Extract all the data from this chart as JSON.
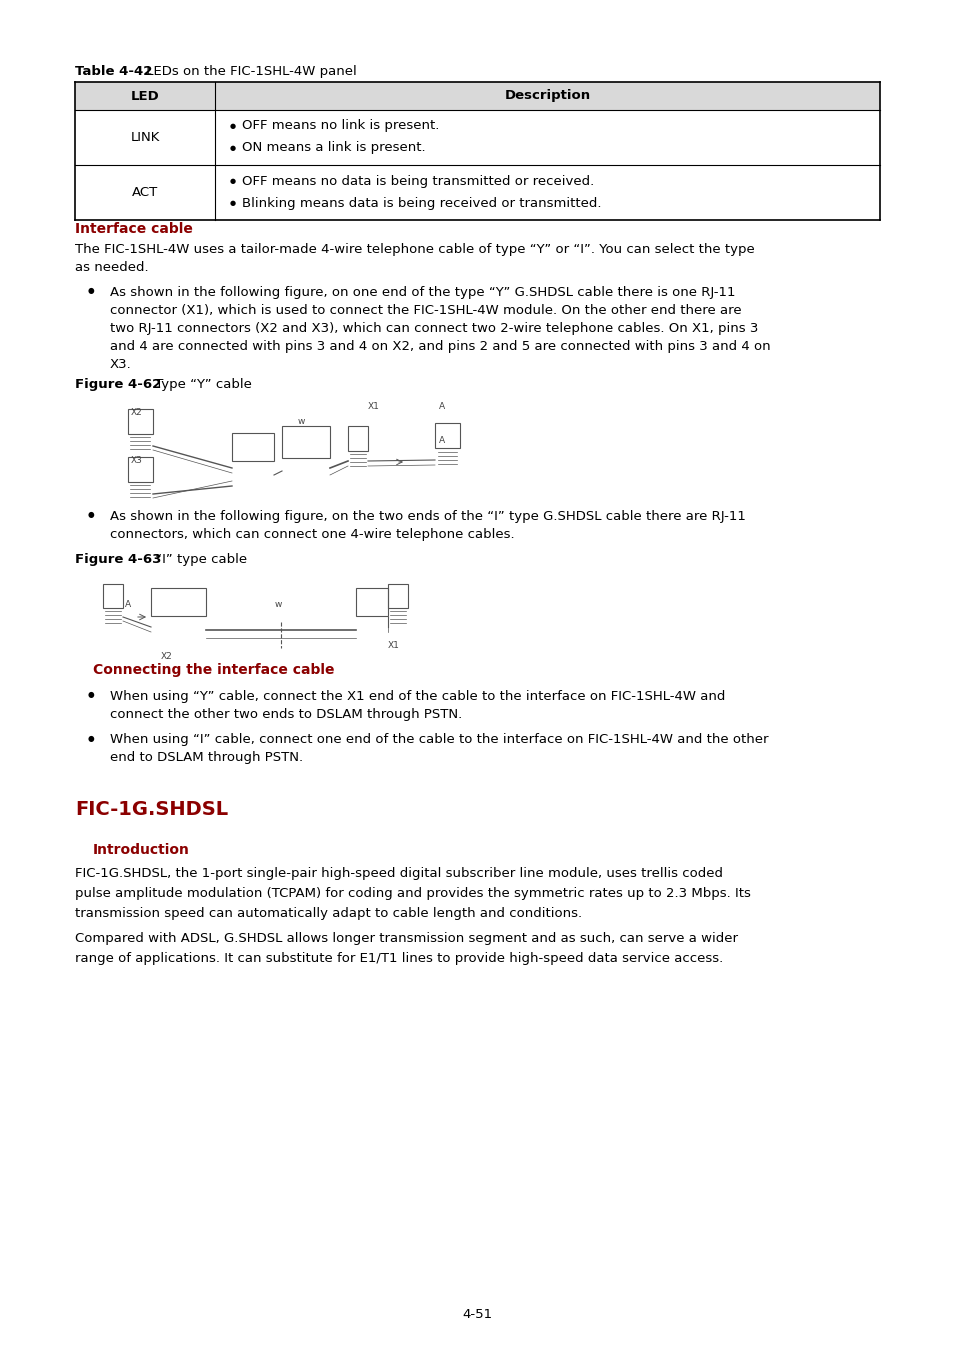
{
  "bg_color": "#ffffff",
  "table_title_bold": "Table 4-42",
  "table_title_rest": " LEDs on the FIC-1SHL-4W panel",
  "table_header": [
    "LED",
    "Description"
  ],
  "table_rows": [
    {
      "led": "LINK",
      "desc": [
        "OFF means no link is present.",
        "ON means a link is present."
      ]
    },
    {
      "led": "ACT",
      "desc": [
        "OFF means no data is being transmitted or received.",
        "Blinking means data is being received or transmitted."
      ]
    }
  ],
  "table_header_bg": "#d9d9d9",
  "section_heading1": "Interface cable",
  "section_heading1_color": "#8B0000",
  "para1_line1": "The FIC-1SHL-4W uses a tailor-made 4-wire telephone cable of type “Y” or “I”. You can select the type",
  "para1_line2": "as needed.",
  "bullet1_lines": [
    "As shown in the following figure, on one end of the type “Y” G.SHDSL cable there is one RJ-11",
    "connector (X1), which is used to connect the FIC-1SHL-4W module. On the other end there are",
    "two RJ-11 connectors (X2 and X3), which can connect two 2-wire telephone cables. On X1, pins 3",
    "and 4 are connected with pins 3 and 4 on X2, and pins 2 and 5 are connected with pins 3 and 4 on",
    "X3."
  ],
  "fig62_bold": "Figure 4-62",
  "fig62_rest": " Type “Y” cable",
  "bullet2_lines": [
    "As shown in the following figure, on the two ends of the “I” type G.SHDSL cable there are RJ-11",
    "connectors, which can connect one 4-wire telephone cables."
  ],
  "fig63_bold": "Figure 4-63",
  "fig63_rest": " “I” type cable",
  "section_heading2": "Connecting the interface cable",
  "section_heading2_color": "#8B0000",
  "connect_bullet1_lines": [
    "When using “Y” cable, connect the X1 end of the cable to the interface on FIC-1SHL-4W and",
    "connect the other two ends to DSLAM through PSTN."
  ],
  "connect_bullet2_lines": [
    "When using “I” cable, connect one end of the cable to the interface on FIC-1SHL-4W and the other",
    "end to DSLAM through PSTN."
  ],
  "section_heading3": "FIC-1G.SHDSL",
  "section_heading3_color": "#8B0000",
  "section_heading4": "Introduction",
  "section_heading4_color": "#8B0000",
  "intro_para1_lines": [
    "FIC-1G.SHDSL, the 1-port single-pair high-speed digital subscriber line module, uses trellis coded",
    "pulse amplitude modulation (TCPAM) for coding and provides the symmetric rates up to 2.3 Mbps. Its",
    "transmission speed can automatically adapt to cable length and conditions."
  ],
  "intro_para2_lines": [
    "Compared with ADSL, G.SHDSL allows longer transmission segment and as such, can serve a wider",
    "range of applications. It can substitute for E1/T1 lines to provide high-speed data service access."
  ],
  "page_number": "4-51",
  "text_color": "#000000",
  "line_color": "#000000",
  "diagram_color": "#555555"
}
